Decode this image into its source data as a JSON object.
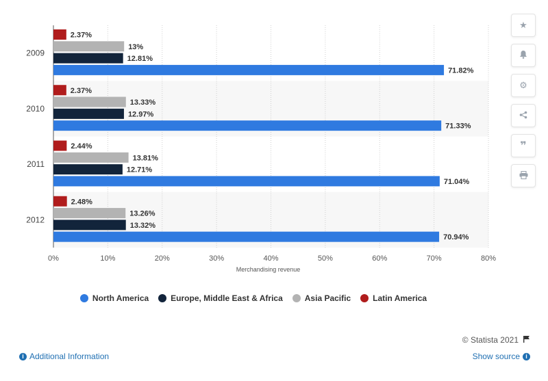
{
  "chart_data": {
    "type": "bar",
    "orientation": "horizontal",
    "categories": [
      "2009",
      "2010",
      "2011",
      "2012"
    ],
    "series": [
      {
        "name": "Latin America",
        "color": "#b01c1c",
        "values": [
          2.37,
          2.37,
          2.44,
          2.48
        ],
        "labels": [
          "2.37%",
          "2.37%",
          "2.44%",
          "2.48%"
        ]
      },
      {
        "name": "Asia Pacific",
        "color": "#b3b3b3",
        "values": [
          13,
          13.33,
          13.81,
          13.26
        ],
        "labels": [
          "13%",
          "13.33%",
          "13.81%",
          "13.26%"
        ]
      },
      {
        "name": "Europe, Middle East & Africa",
        "color": "#12243b",
        "values": [
          12.81,
          12.97,
          12.71,
          13.32
        ],
        "labels": [
          "12.81%",
          "12.97%",
          "12.71%",
          "13.32%"
        ]
      },
      {
        "name": "North America",
        "color": "#2f7ae0",
        "values": [
          71.82,
          71.33,
          71.04,
          70.94
        ],
        "labels": [
          "71.82%",
          "71.33%",
          "71.04%",
          "70.94%"
        ]
      }
    ],
    "xlabel": "Merchandising revenue",
    "xlim": [
      0,
      80
    ],
    "xticks": [
      "0%",
      "10%",
      "20%",
      "30%",
      "40%",
      "50%",
      "60%",
      "70%",
      "80%"
    ],
    "grid": true,
    "legend_position": "bottom"
  },
  "legend": [
    {
      "label": "North America",
      "color": "#2f7ae0"
    },
    {
      "label": "Europe, Middle East & Africa",
      "color": "#12243b"
    },
    {
      "label": "Asia Pacific",
      "color": "#b3b3b3"
    },
    {
      "label": "Latin America",
      "color": "#b01c1c"
    }
  ],
  "sidebar_icons": [
    "star-icon",
    "bell-icon",
    "gear-icon",
    "share-icon",
    "quote-icon",
    "print-icon"
  ],
  "footer": {
    "credit": "© Statista 2021",
    "additional_info": "Additional Information",
    "show_source": "Show source"
  }
}
